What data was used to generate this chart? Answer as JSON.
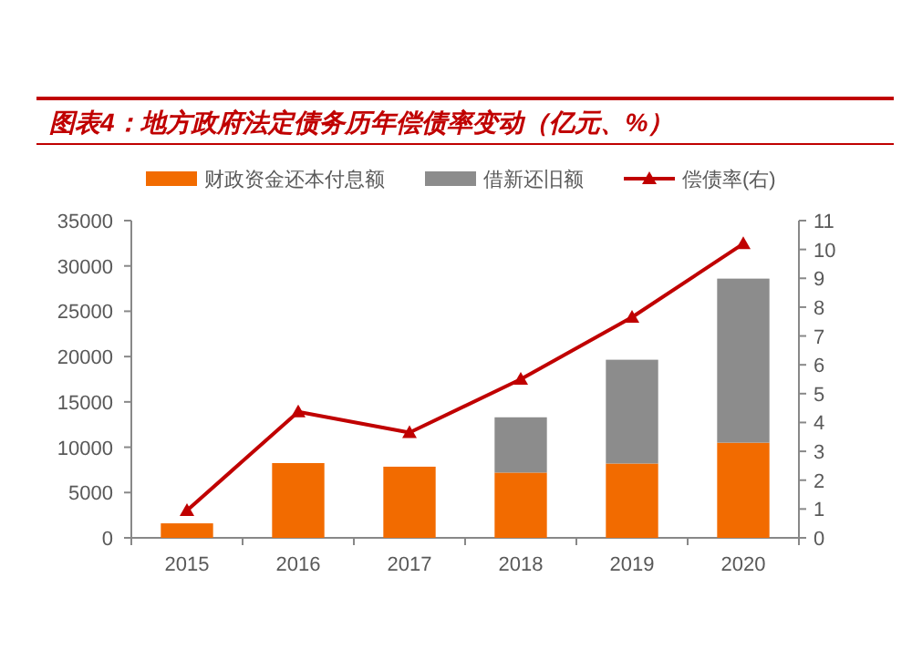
{
  "chart_data": {
    "type": "bar",
    "title": "图表4：地方政府法定债务历年偿债率变动（亿元、%）",
    "categories": [
      "2015",
      "2016",
      "2017",
      "2018",
      "2019",
      "2020"
    ],
    "stacked": true,
    "legend": "top",
    "series": [
      {
        "name": "财政资金还本付息额",
        "color": "#f26b00",
        "values": [
          1600,
          8250,
          7850,
          7200,
          8200,
          10500
        ]
      },
      {
        "name": "借新还旧额",
        "color": "#8c8c8c",
        "values": [
          null,
          null,
          null,
          6100,
          11450,
          18100
        ]
      },
      {
        "name": "偿债率(右)",
        "type": "line",
        "axis": "y2",
        "color": "#c00000",
        "marker": "triangle",
        "values": [
          0.95,
          4.37,
          3.65,
          5.5,
          7.65,
          10.2
        ]
      }
    ],
    "ylim": [
      0,
      35000
    ],
    "yticks": [
      0,
      5000,
      10000,
      15000,
      20000,
      25000,
      30000,
      35000
    ],
    "y2lim": [
      0,
      11
    ],
    "y2ticks": [
      0,
      1,
      2,
      3,
      4,
      5,
      6,
      7,
      8,
      9,
      10,
      11
    ],
    "grid": false
  }
}
